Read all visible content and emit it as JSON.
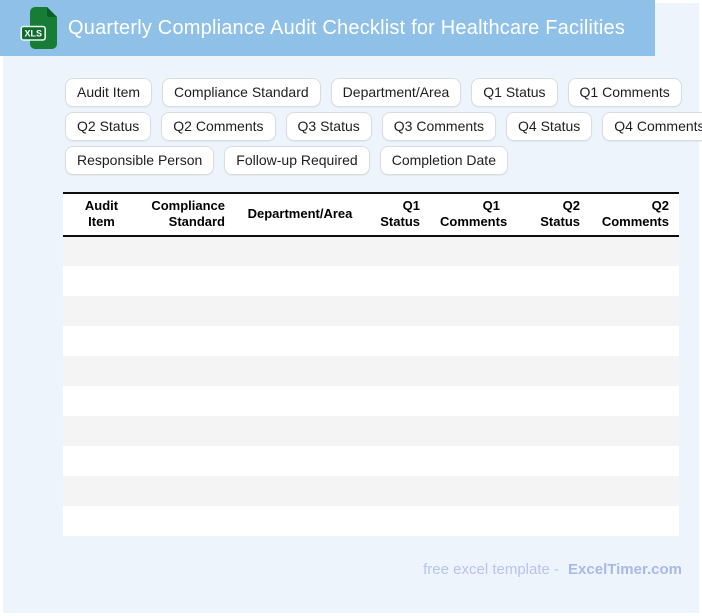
{
  "header": {
    "title": "Quarterly Compliance Audit Checklist for Healthcare Facilities",
    "badge": "XLS"
  },
  "chips": {
    "items": [
      "Audit Item",
      "Compliance Standard",
      "Department/Area",
      "Q1 Status",
      "Q1 Comments",
      "Q2 Status",
      "Q2 Comments",
      "Q3 Status",
      "Q3 Comments",
      "Q4 Status",
      "Q4 Comments",
      "Responsible Person",
      "Follow-up Required",
      "Completion Date"
    ]
  },
  "table": {
    "columns": [
      {
        "line1": "Audit",
        "line2": "Item"
      },
      {
        "line1": "Compliance",
        "line2": "Standard"
      },
      {
        "line1": "Department/Area"
      },
      {
        "line1": "Q1",
        "line2": "Status"
      },
      {
        "line1": "Q1",
        "line2": "Comments"
      },
      {
        "line1": "Q2",
        "line2": "Status"
      },
      {
        "line1": "Q2",
        "line2": "Comments"
      }
    ],
    "visible_empty_rows": 10
  },
  "footer": {
    "prefix": "free excel template -",
    "brand": "ExcelTimer.com"
  },
  "colors": {
    "page_bg": "#eef4fc",
    "header_bg": "#8ec0e8",
    "row_stripe": "#f5f4f5",
    "chip_border": "#d8dce1",
    "icon_green": "#177d36",
    "icon_badge_green": "#0f6c2e",
    "footer_text": "#b7c3ec",
    "footer_brand": "#a9b8e6"
  }
}
